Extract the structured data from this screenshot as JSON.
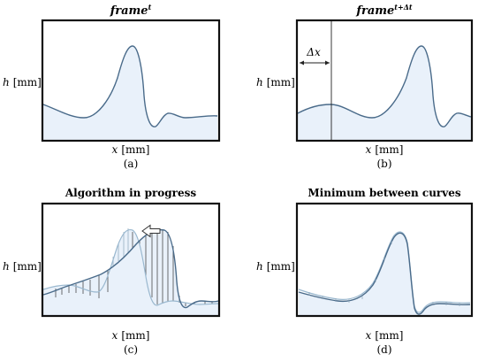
{
  "panels": [
    {
      "id": "a",
      "title_base": "frame",
      "title_sup": "t",
      "xlabel_var": "x",
      "xlabel_unit": "[mm]",
      "ylabel_var": "h",
      "ylabel_unit": "[mm]",
      "caption": "(a)"
    },
    {
      "id": "b",
      "title_base": "frame",
      "title_sup": "t+Δt",
      "xlabel_var": "x",
      "xlabel_unit": "[mm]",
      "ylabel_var": "h",
      "ylabel_unit": "[mm]",
      "caption": "(b)",
      "shift_label": "Δx"
    },
    {
      "id": "c",
      "title": "Algorithm in progress",
      "xlabel_var": "x",
      "xlabel_unit": "[mm]",
      "ylabel_var": "h",
      "ylabel_unit": "[mm]",
      "caption": "(c)"
    },
    {
      "id": "d",
      "title": "Minimum between curves",
      "xlabel_var": "x",
      "xlabel_unit": "[mm]",
      "ylabel_var": "h",
      "ylabel_unit": "[mm]",
      "caption": "(d)"
    }
  ],
  "colors": {
    "curve": "#4a6b8a",
    "curve_light": "#9ab8cf",
    "fill": "#e9f1fa",
    "frame": "#111111"
  }
}
